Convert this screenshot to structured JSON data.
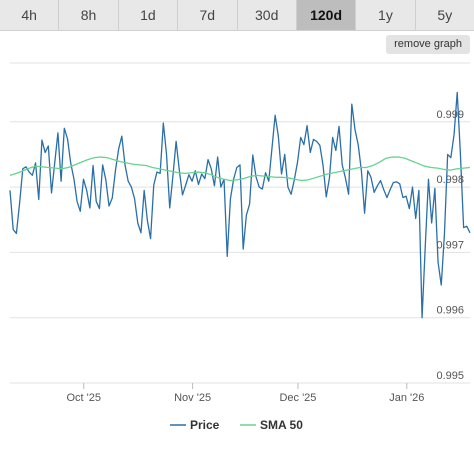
{
  "tabs": [
    {
      "label": "4h",
      "active": false
    },
    {
      "label": "8h",
      "active": false
    },
    {
      "label": "1d",
      "active": false
    },
    {
      "label": "7d",
      "active": false
    },
    {
      "label": "30d",
      "active": false
    },
    {
      "label": "120d",
      "active": true
    },
    {
      "label": "1y",
      "active": false
    },
    {
      "label": "5y",
      "active": false
    }
  ],
  "remove_graph_label": "remove graph",
  "chart_data": {
    "type": "line",
    "title": "",
    "xlabel": "",
    "ylabel": "",
    "x_range": [
      "2025-09-10",
      "2026-01-19"
    ],
    "ylim": [
      0.995,
      0.9999
    ],
    "y_ticks": [
      0.995,
      0.996,
      0.997,
      0.998,
      0.999
    ],
    "y_tick_labels": [
      "0.995",
      "0.996",
      "0.997",
      "0.998",
      "0.999"
    ],
    "x_ticks": [
      "2025-10-01",
      "2025-11-01",
      "2025-12-01",
      "2026-01-01"
    ],
    "x_tick_labels": [
      "Oct '25",
      "Nov '25",
      "Dec '25",
      "Jan '26"
    ],
    "grid": true,
    "legend_position": "bottom",
    "colors": {
      "price": "#2a6fa8",
      "sma": "#66d38f",
      "grid": "#e2e2e2"
    },
    "series": [
      {
        "name": "Price",
        "x_start": "2025-09-10",
        "x_end": "2026-01-19",
        "values": [
          0.99795,
          0.99735,
          0.99729,
          0.99775,
          0.99828,
          0.99831,
          0.99823,
          0.99818,
          0.99837,
          0.99781,
          0.99872,
          0.99853,
          0.99863,
          0.99791,
          0.99837,
          0.99883,
          0.99809,
          0.9989,
          0.99874,
          0.99837,
          0.99813,
          0.99778,
          0.99763,
          0.99812,
          0.99795,
          0.99768,
          0.99833,
          0.99778,
          0.99767,
          0.99834,
          0.99811,
          0.99771,
          0.99783,
          0.99825,
          0.99858,
          0.99878,
          0.99834,
          0.99809,
          0.998,
          0.99782,
          0.99745,
          0.9973,
          0.99795,
          0.99749,
          0.99721,
          0.99803,
          0.99823,
          0.99821,
          0.99898,
          0.9985,
          0.99768,
          0.99817,
          0.9987,
          0.99826,
          0.99788,
          0.99803,
          0.99819,
          0.99809,
          0.99825,
          0.99804,
          0.9982,
          0.99813,
          0.99842,
          0.99828,
          0.99802,
          0.99846,
          0.998,
          0.99812,
          0.99694,
          0.99782,
          0.99812,
          0.9983,
          0.99834,
          0.99705,
          0.99757,
          0.99774,
          0.99849,
          0.99816,
          0.998,
          0.99797,
          0.99822,
          0.99809,
          0.99859,
          0.9991,
          0.99878,
          0.9982,
          0.9985,
          0.998,
          0.99789,
          0.99811,
          0.99838,
          0.99876,
          0.99865,
          0.99894,
          0.99853,
          0.99873,
          0.9987,
          0.99864,
          0.99833,
          0.99785,
          0.99814,
          0.99876,
          0.99856,
          0.99893,
          0.99834,
          0.99814,
          0.99789,
          0.99927,
          0.99888,
          0.99865,
          0.99825,
          0.9976,
          0.99825,
          0.99815,
          0.99792,
          0.99802,
          0.9981,
          0.99796,
          0.99784,
          0.99796,
          0.99807,
          0.99808,
          0.99805,
          0.99784,
          0.99786,
          0.99767,
          0.998,
          0.99752,
          0.99795,
          0.996,
          0.9971,
          0.99812,
          0.99745,
          0.99798,
          0.99685,
          0.9965,
          0.99728,
          0.9985,
          0.99845,
          0.9988,
          0.99945,
          0.9985,
          0.99738,
          0.9974,
          0.9973
        ]
      },
      {
        "name": "SMA 50",
        "x_start": "2025-09-10",
        "x_end": "2026-01-19",
        "values": [
          0.99818,
          0.99821,
          0.99825,
          0.99829,
          0.99832,
          0.99831,
          0.9983,
          0.99829,
          0.99828,
          0.9983,
          0.99834,
          0.99838,
          0.99842,
          0.99845,
          0.99846,
          0.99845,
          0.99842,
          0.99839,
          0.99837,
          0.99835,
          0.99834,
          0.99833,
          0.9983,
          0.99828,
          0.99826,
          0.99824,
          0.99822,
          0.99821,
          0.99822,
          0.99823,
          0.99822,
          0.99819,
          0.99815,
          0.99812,
          0.9981,
          0.99811,
          0.99813,
          0.99816,
          0.99818,
          0.99817,
          0.99816,
          0.99815,
          0.99815,
          0.99814,
          0.99812,
          0.9981,
          0.99811,
          0.99814,
          0.99817,
          0.9982,
          0.99822,
          0.99824,
          0.99826,
          0.99828,
          0.9983,
          0.9983,
          0.99833,
          0.99838,
          0.99844,
          0.99846,
          0.99846,
          0.99844,
          0.9984,
          0.99836,
          0.99832,
          0.9983,
          0.99829,
          0.99827,
          0.99826,
          0.99828,
          0.99829,
          0.9983
        ]
      }
    ]
  }
}
